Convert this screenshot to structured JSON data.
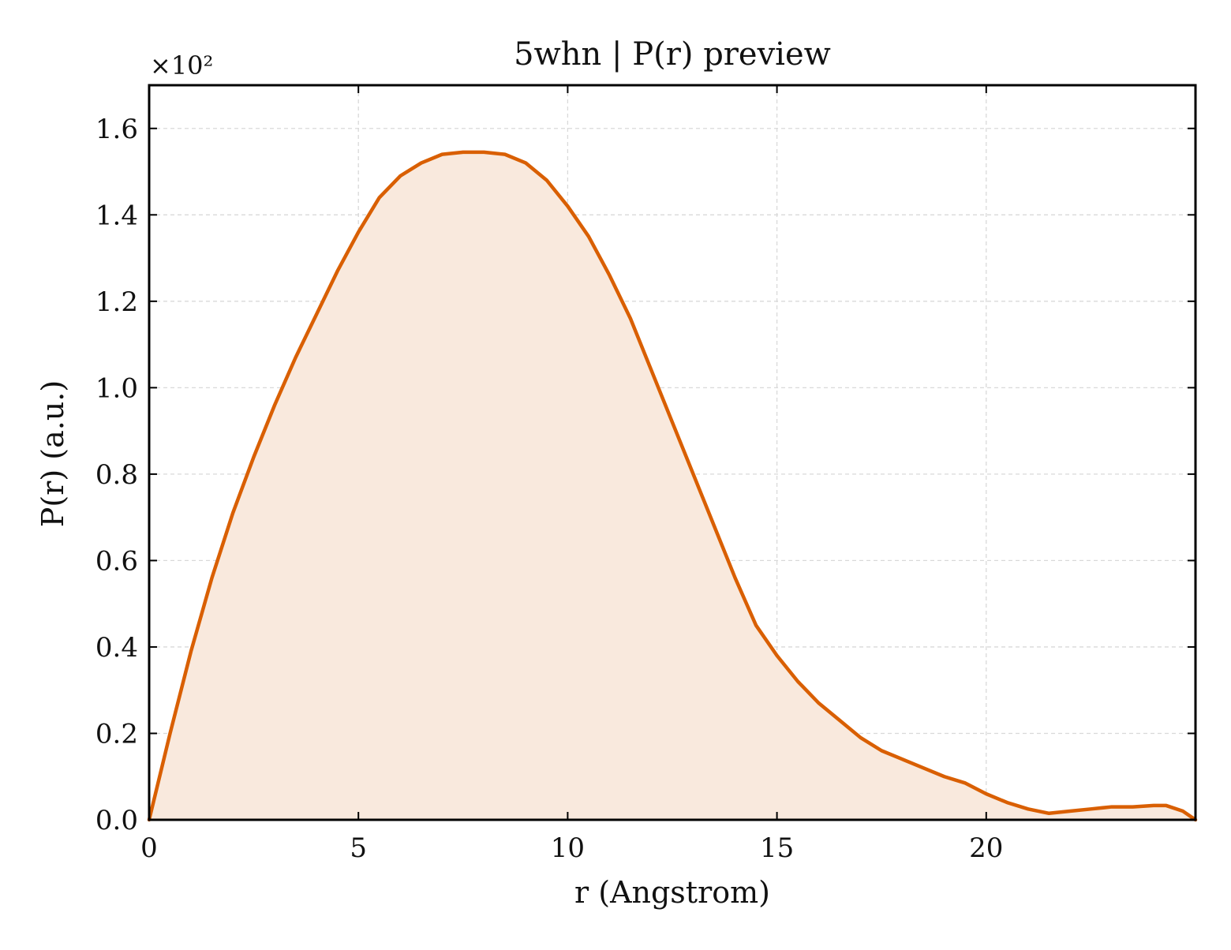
{
  "chart_data": {
    "type": "area",
    "title": "5whn | P(r) preview",
    "xlabel": "r (Angstrom)",
    "ylabel": "P(r) (a.u.)",
    "y_multiplier": "×10²",
    "xlim": [
      0,
      25
    ],
    "ylim": [
      0,
      1.7
    ],
    "xticks": [
      0,
      5,
      10,
      15,
      20
    ],
    "xtick_labels": [
      "0",
      "5",
      "10",
      "15",
      "20"
    ],
    "yticks": [
      0.0,
      0.2,
      0.4,
      0.6,
      0.8,
      1.0,
      1.2,
      1.4,
      1.6
    ],
    "ytick_labels": [
      "0.0",
      "0.2",
      "0.4",
      "0.6",
      "0.8",
      "1.0",
      "1.2",
      "1.4",
      "1.6"
    ],
    "grid": true,
    "legend": "none",
    "colors": {
      "line": "#d95f02",
      "fill": "#f9e9dd",
      "grid": "#d9d9d9",
      "axes": "#000000"
    },
    "series": [
      {
        "x": [
          0,
          0.5,
          1,
          1.5,
          2,
          2.5,
          3,
          3.5,
          4,
          4.5,
          5,
          5.5,
          6,
          6.5,
          7,
          7.5,
          8,
          8.5,
          9,
          9.5,
          10,
          10.5,
          11,
          11.5,
          12,
          12.5,
          13,
          13.5,
          14,
          14.5,
          15,
          15.5,
          16,
          16.5,
          17,
          17.5,
          18,
          18.5,
          19,
          19.5,
          20,
          20.5,
          21,
          21.5,
          22,
          22.5,
          23,
          23.5,
          24,
          24.3,
          24.7,
          25
        ],
        "y": [
          0.0,
          0.2,
          0.39,
          0.56,
          0.71,
          0.84,
          0.96,
          1.07,
          1.17,
          1.27,
          1.36,
          1.44,
          1.49,
          1.52,
          1.54,
          1.545,
          1.545,
          1.54,
          1.52,
          1.48,
          1.42,
          1.35,
          1.26,
          1.16,
          1.04,
          0.92,
          0.8,
          0.68,
          0.56,
          0.45,
          0.38,
          0.32,
          0.27,
          0.23,
          0.19,
          0.16,
          0.14,
          0.12,
          0.1,
          0.085,
          0.06,
          0.04,
          0.025,
          0.015,
          0.02,
          0.025,
          0.03,
          0.03,
          0.033,
          0.033,
          0.02,
          0.0
        ]
      }
    ]
  }
}
